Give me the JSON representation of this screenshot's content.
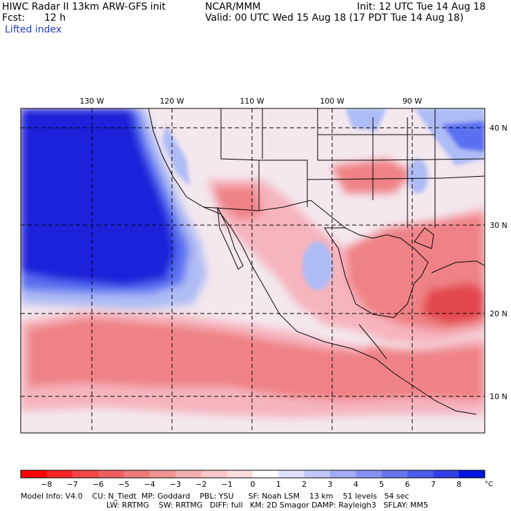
{
  "header": {
    "model_title": "HIWC Radar II 13km ARW-GFS init",
    "org": "NCAR/MMM",
    "init_text": "Init: 12 UTC Tue 14 Aug 18",
    "fcst_label": "Fcst:",
    "fcst_value": "12 h",
    "valid_text": "Valid: 00 UTC Wed 15 Aug 18 (17 PDT Tue 14 Aug 18)",
    "field_name": "Lifted index"
  },
  "map": {
    "lon_labels": [
      "130 W",
      "120 W",
      "110 W",
      "100 W",
      "90 W"
    ],
    "lat_labels": [
      "40 N",
      "30 N",
      "20 N",
      "10 N"
    ],
    "colors": {
      "deep_blue": "#1a23d9",
      "mid_blue": "#5a6ff2",
      "light_blue": "#aebcf5",
      "pale": "#f4e8ef",
      "pink": "#f6b4bd",
      "salmon": "#ef8286",
      "red": "#e2474c"
    }
  },
  "colorbar": {
    "labels": [
      "−8",
      "−7",
      "−6",
      "−5",
      "−4",
      "−3",
      "−2",
      "−1",
      "0",
      "1",
      "2",
      "3",
      "4",
      "5",
      "6",
      "7",
      "8"
    ],
    "unit": "°C",
    "colors": [
      "#ff0000",
      "#fa2424",
      "#f44444",
      "#ef5e5e",
      "#ee7a7a",
      "#f09393",
      "#f4adad",
      "#f7c6c6",
      "#fbdddd",
      "#ffffff",
      "#dfe2fb",
      "#c1c7f8",
      "#a2abf5",
      "#8590f2",
      "#6a76f0",
      "#4e5cee",
      "#2f40ea",
      "#0014e0"
    ]
  },
  "footer": {
    "line1": "Model Info: V4.0    CU: N_Tiedt  MP: Goddard    PBL: YSU      SF: Noah LSM    13 km    51 levels   54 sec",
    "line2": "LW: RRTMG    SW: RRTMG   DIFF: full   KM: 2D Smagor DAMP: Rayleigh3   SFLAY: MM5"
  }
}
